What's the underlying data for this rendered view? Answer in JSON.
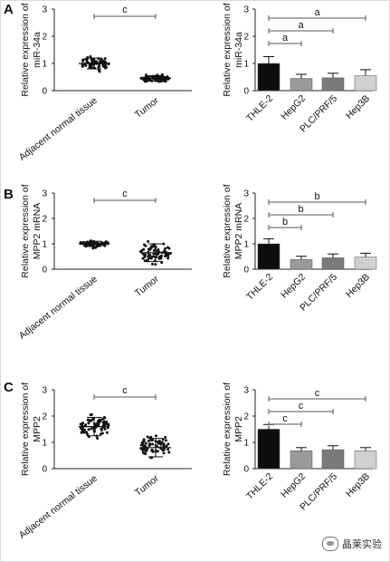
{
  "panels": [
    {
      "letter": "A",
      "ylabel": [
        "Relative expression of",
        "miR-34a"
      ]
    },
    {
      "letter": "B",
      "ylabel": [
        "Relative expression of",
        "MPP2 mRNA"
      ]
    },
    {
      "letter": "C",
      "ylabel": [
        "Relative expression of",
        "MPP2"
      ]
    }
  ],
  "chart_data": [
    {
      "panel": "A",
      "type": "scatter",
      "categories": [
        "Adjacent normal tissue",
        "Tumor"
      ],
      "ylim": [
        0,
        3
      ],
      "yticks": [
        0,
        1,
        2,
        3
      ],
      "groups": [
        {
          "name": "Adjacent normal tissue",
          "mean": 1.0,
          "min": 0.6,
          "max": 1.65,
          "sd": 0.2
        },
        {
          "name": "Tumor",
          "mean": 0.45,
          "min": 0.25,
          "max": 0.75,
          "sd": 0.1
        }
      ],
      "significance": [
        {
          "from": "Adjacent normal tissue",
          "to": "Tumor",
          "label": "c"
        }
      ]
    },
    {
      "panel": "A",
      "type": "bar",
      "categories": [
        "THLE-2",
        "HepG2",
        "PLC/PRF/5",
        "Hep3B"
      ],
      "values": [
        1.0,
        0.45,
        0.47,
        0.55
      ],
      "errors": [
        0.25,
        0.15,
        0.17,
        0.22
      ],
      "colors": [
        "#0d0d0d",
        "#9a9a9a",
        "#7a7a7a",
        "#d0d0d0"
      ],
      "ylim": [
        0,
        3
      ],
      "yticks": [
        0,
        1,
        2,
        3
      ],
      "significance": [
        {
          "from": "THLE-2",
          "to": "HepG2",
          "label": "a"
        },
        {
          "from": "THLE-2",
          "to": "PLC/PRF/5",
          "label": "a"
        },
        {
          "from": "THLE-2",
          "to": "Hep3B",
          "label": "a"
        }
      ]
    },
    {
      "panel": "B",
      "type": "scatter",
      "categories": [
        "Adjacent normal tissue",
        "Tumor"
      ],
      "ylim": [
        0,
        3
      ],
      "yticks": [
        0,
        1,
        2,
        3
      ],
      "groups": [
        {
          "name": "Adjacent normal tissue",
          "mean": 1.0,
          "min": 0.75,
          "max": 1.25,
          "sd": 0.1
        },
        {
          "name": "Tumor",
          "mean": 0.65,
          "min": 0.0,
          "max": 1.85,
          "sd": 0.35
        }
      ],
      "significance": [
        {
          "from": "Adjacent normal tissue",
          "to": "Tumor",
          "label": "c"
        }
      ]
    },
    {
      "panel": "B",
      "type": "bar",
      "categories": [
        "THLE-2",
        "HepG2",
        "PLC/PRF/5",
        "Hep3B"
      ],
      "values": [
        1.0,
        0.38,
        0.45,
        0.48
      ],
      "errors": [
        0.2,
        0.13,
        0.15,
        0.15
      ],
      "colors": [
        "#0d0d0d",
        "#9a9a9a",
        "#7a7a7a",
        "#d0d0d0"
      ],
      "ylim": [
        0,
        3
      ],
      "yticks": [
        0,
        1,
        2,
        3
      ],
      "significance": [
        {
          "from": "THLE-2",
          "to": "HepG2",
          "label": "b"
        },
        {
          "from": "THLE-2",
          "to": "PLC/PRF/5",
          "label": "b"
        },
        {
          "from": "THLE-2",
          "to": "Hep3B",
          "label": "b"
        }
      ]
    },
    {
      "panel": "C",
      "type": "scatter",
      "categories": [
        "Adjacent normal tissue",
        "Tumor"
      ],
      "ylim": [
        0,
        3
      ],
      "yticks": [
        0,
        1,
        2,
        3
      ],
      "groups": [
        {
          "name": "Adjacent normal tissue",
          "mean": 1.6,
          "min": 0.6,
          "max": 2.35,
          "sd": 0.35
        },
        {
          "name": "Tumor",
          "mean": 0.8,
          "min": 0.05,
          "max": 1.45,
          "sd": 0.35
        }
      ],
      "significance": [
        {
          "from": "Adjacent normal tissue",
          "to": "Tumor",
          "label": "c"
        }
      ]
    },
    {
      "panel": "C",
      "type": "bar",
      "categories": [
        "THLE-2",
        "HepG2",
        "PLC/PRF/5",
        "Hep3B"
      ],
      "values": [
        1.5,
        0.68,
        0.72,
        0.68
      ],
      "errors": [
        0.18,
        0.12,
        0.15,
        0.12
      ],
      "colors": [
        "#0d0d0d",
        "#9a9a9a",
        "#7a7a7a",
        "#d0d0d0"
      ],
      "ylim": [
        0,
        3
      ],
      "yticks": [
        0,
        1,
        2,
        3
      ],
      "significance": [
        {
          "from": "THLE-2",
          "to": "HepG2",
          "label": "c"
        },
        {
          "from": "THLE-2",
          "to": "PLC/PRF/5",
          "label": "c"
        },
        {
          "from": "THLE-2",
          "to": "Hep3B",
          "label": "c"
        }
      ]
    }
  ],
  "watermark": {
    "text": "晶莱实验",
    "icon": "wechat-icon"
  }
}
